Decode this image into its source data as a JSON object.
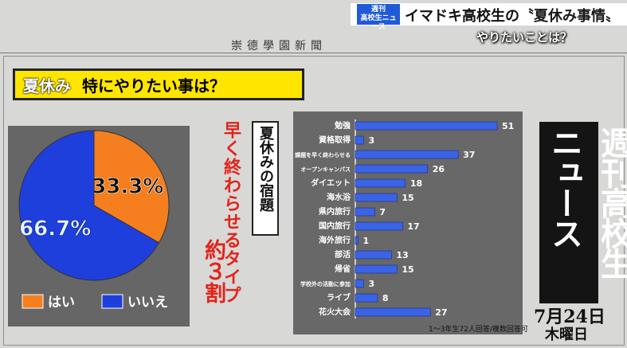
{
  "news": {
    "logo_line1": "週刊",
    "logo_line2": "高校生ニュース",
    "headline_prefix": "イマドキ高校生の",
    "headline_highlight": "〝夏休み事情〟",
    "subtitle": "やりたいことは？"
  },
  "masthead": "崇德學園新聞",
  "panel_title": {
    "part1": "夏休み",
    "part2": "特にやりたい事は？"
  },
  "homework": {
    "box_title": "夏休みの宿題",
    "red_line": "早く終わらせるタイプ",
    "red_ratio": "約３割"
  },
  "weekly": {
    "name": "週刊高校生ニュース",
    "date": "7月24日",
    "weekday": "木曜日"
  },
  "colors": {
    "orange": "#f57f1f",
    "blue": "#1e3fdc",
    "bar": "#3b63e6",
    "yellow": "#ffe600",
    "red": "#e0241b"
  },
  "chart_data": [
    {
      "type": "pie",
      "slices": [
        {
          "label": "はい",
          "value": 33.3,
          "display": "33.3%",
          "color": "#f57f1f"
        },
        {
          "label": "いいえ",
          "value": 66.7,
          "display": "66.7%",
          "color": "#1e3fdc"
        }
      ],
      "legend_position": "bottom"
    },
    {
      "type": "bar",
      "orientation": "horizontal",
      "categories": [
        "勉強",
        "資格取得",
        "課題を早く終わらせる",
        "オープンキャンパス",
        "ダイエット",
        "海水浴",
        "県内旅行",
        "国内旅行",
        "海外旅行",
        "部活",
        "帰省",
        "学校外の活動に参加",
        "ライブ",
        "花火大会"
      ],
      "values": [
        51,
        3,
        37,
        26,
        18,
        15,
        7,
        17,
        1,
        13,
        15,
        3,
        8,
        27
      ],
      "note": "1～3年生72人回答/複数回答可"
    }
  ]
}
